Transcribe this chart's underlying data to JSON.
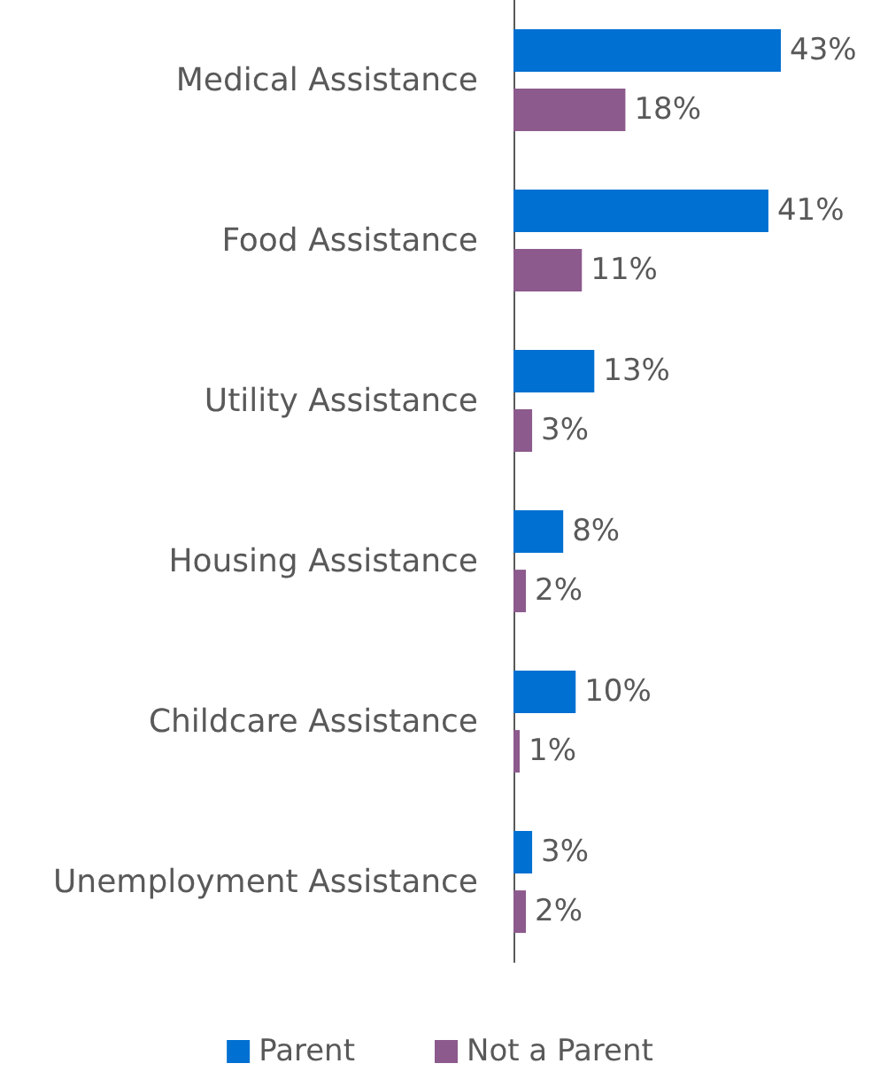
{
  "chart_data": {
    "type": "bar",
    "orientation": "horizontal",
    "categories": [
      "Medical Assistance",
      "Food Assistance",
      "Utility Assistance",
      "Housing Assistance",
      "Childcare Assistance",
      "Unemployment Assistance"
    ],
    "series": [
      {
        "name": "Parent",
        "color": "#0070d2",
        "values": [
          43,
          41,
          13,
          8,
          10,
          3
        ],
        "value_labels": [
          "43%",
          "41%",
          "13%",
          "8%",
          "10%",
          "3%"
        ]
      },
      {
        "name": "Not a Parent",
        "color": "#8c5a8c",
        "values": [
          18,
          11,
          3,
          2,
          1,
          2
        ],
        "value_labels": [
          "18%",
          "11%",
          "3%",
          "2%",
          "1%",
          "2%"
        ]
      }
    ],
    "tick_labels": "y",
    "grid": false,
    "legend": "bottom"
  }
}
